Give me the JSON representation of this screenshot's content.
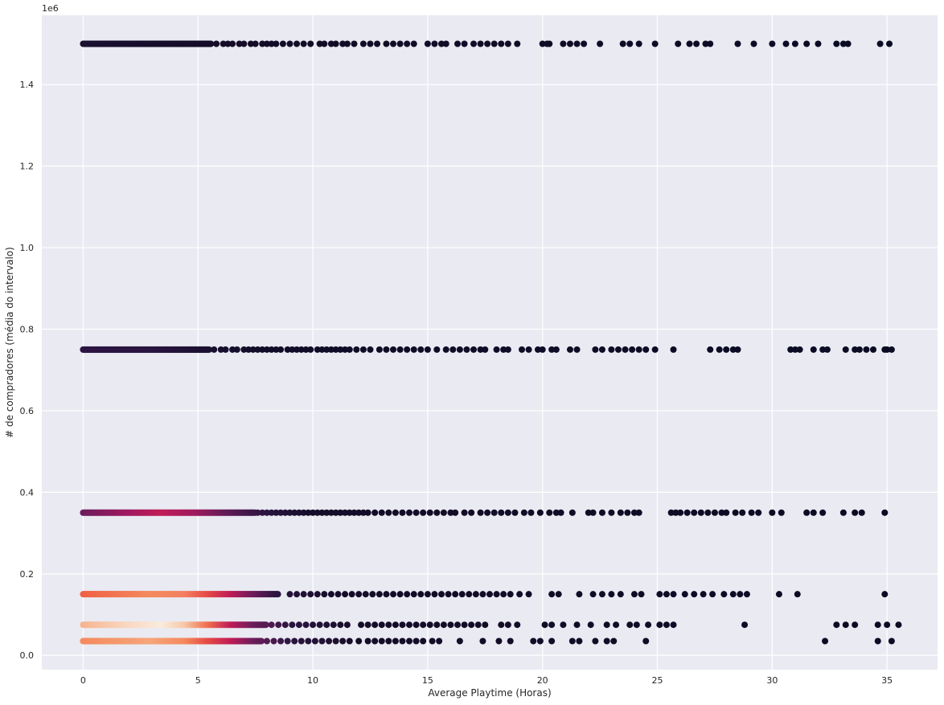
{
  "chart_data": {
    "type": "scatter",
    "title": "",
    "xlabel": "Average Playtime (Horas)",
    "ylabel": "# de compradores (média do intervalo)",
    "y_offset_label": "1e6",
    "xlim": [
      -1.8,
      37.2
    ],
    "ylim": [
      -35000,
      1570000
    ],
    "x_ticks": [
      0,
      5,
      10,
      15,
      20,
      25,
      30,
      35
    ],
    "x_tick_labels": [
      "0",
      "5",
      "10",
      "15",
      "20",
      "25",
      "30",
      "35"
    ],
    "y_ticks": [
      0,
      200000,
      400000,
      600000,
      800000,
      1000000,
      1200000,
      1400000
    ],
    "y_tick_labels": [
      "0.0",
      "0.2",
      "0.4",
      "0.6",
      "0.8",
      "1.0",
      "1.2",
      "1.4"
    ],
    "grid": true,
    "background": "#eaeaf2",
    "grid_color": "#ffffff",
    "colormap": "rocket",
    "point_color_note": "color encodes point density",
    "series": [
      {
        "y": 1500000,
        "dense_until": 5.6,
        "color_stops": [
          [
            0,
            "#1a1030"
          ],
          [
            5.6,
            "#140c28"
          ],
          [
            36,
            "#0b0b24"
          ]
        ],
        "sparse_x": [
          5.8,
          6.1,
          6.3,
          6.5,
          6.8,
          7.0,
          7.3,
          7.5,
          7.8,
          8.0,
          8.2,
          8.4,
          8.7,
          9.0,
          9.3,
          9.6,
          9.9,
          10.3,
          10.5,
          10.8,
          11.0,
          11.3,
          11.5,
          11.8,
          12.2,
          12.5,
          12.8,
          13.2,
          13.5,
          13.8,
          14.1,
          14.4,
          15.0,
          15.3,
          15.6,
          15.8,
          16.3,
          16.6,
          17.0,
          17.3,
          17.6,
          17.9,
          18.2,
          18.5,
          18.9,
          20.0,
          20.2,
          20.3,
          20.9,
          21.2,
          21.5,
          21.8,
          22.5,
          23.5,
          23.8,
          24.2,
          24.9,
          25.9,
          26.4,
          26.7,
          27.1,
          27.3,
          28.5,
          29.2,
          30.0,
          30.6,
          31.0,
          31.5,
          32.0,
          32.8,
          33.1,
          33.3,
          34.7,
          35.1
        ],
        "sparse_color": "#0b0b24"
      },
      {
        "y": 750000,
        "dense_until": 5.5,
        "color_stops": [
          [
            0,
            "#2b1443"
          ],
          [
            3,
            "#2a1440"
          ],
          [
            5.5,
            "#1a1030"
          ],
          [
            8,
            "#100c28"
          ],
          [
            36,
            "#0b0b24"
          ]
        ],
        "sparse_x": [
          5.7,
          6.0,
          6.2,
          6.5,
          6.7,
          7.0,
          7.2,
          7.4,
          7.6,
          7.8,
          8.0,
          8.2,
          8.4,
          8.6,
          8.9,
          9.1,
          9.3,
          9.5,
          9.7,
          9.9,
          10.2,
          10.4,
          10.6,
          10.8,
          11.0,
          11.2,
          11.4,
          11.6,
          11.9,
          12.2,
          12.5,
          12.9,
          13.2,
          13.5,
          13.8,
          14.1,
          14.4,
          14.7,
          15.0,
          15.4,
          15.8,
          16.1,
          16.4,
          16.7,
          17.0,
          17.3,
          17.5,
          18.0,
          18.3,
          18.5,
          19.1,
          19.4,
          19.8,
          20.0,
          20.4,
          20.6,
          21.2,
          21.5,
          22.3,
          22.6,
          23.0,
          23.3,
          23.6,
          23.9,
          24.2,
          24.5,
          24.9,
          25.7,
          27.3,
          27.7,
          28.0,
          28.3,
          28.5,
          30.8,
          31.0,
          31.2,
          31.8,
          32.2,
          32.4,
          33.2,
          33.6,
          33.8,
          34.1,
          34.4,
          34.9,
          35.0,
          35.2
        ],
        "sparse_color": "#0b0b24"
      },
      {
        "y": 350000,
        "dense_until": 7.5,
        "color_stops": [
          [
            0,
            "#6b1d5c"
          ],
          [
            2,
            "#a0185e"
          ],
          [
            3.5,
            "#c01d58"
          ],
          [
            5,
            "#9d1a5e"
          ],
          [
            6.5,
            "#5a1a55"
          ],
          [
            8,
            "#2a1440"
          ],
          [
            10,
            "#140c28"
          ],
          [
            36,
            "#0b0b24"
          ]
        ],
        "sparse_x": [
          7.6,
          7.8,
          8.0,
          8.2,
          8.4,
          8.6,
          8.8,
          9.0,
          9.2,
          9.4,
          9.6,
          9.8,
          10.0,
          10.2,
          10.4,
          10.6,
          10.8,
          11.0,
          11.2,
          11.4,
          11.6,
          11.8,
          12.0,
          12.2,
          12.4,
          12.7,
          13.0,
          13.3,
          13.6,
          13.9,
          14.2,
          14.5,
          14.8,
          15.1,
          15.4,
          15.7,
          16.0,
          16.2,
          16.6,
          16.9,
          17.3,
          17.6,
          17.9,
          18.2,
          18.5,
          18.8,
          19.2,
          19.5,
          19.9,
          20.3,
          20.6,
          20.8,
          21.3,
          22.0,
          22.2,
          22.6,
          23.0,
          23.4,
          23.7,
          24.0,
          24.2,
          25.6,
          25.8,
          26.0,
          26.3,
          26.6,
          26.9,
          27.2,
          27.5,
          27.8,
          28.0,
          28.4,
          28.7,
          29.1,
          29.4,
          30.0,
          30.4,
          31.5,
          31.8,
          32.2,
          33.1,
          33.6,
          33.9,
          34.9
        ],
        "sparse_color": "#0b0b24"
      },
      {
        "y": 150000,
        "dense_until": 8.5,
        "color_stops": [
          [
            0,
            "#f06044"
          ],
          [
            3,
            "#f48a5e"
          ],
          [
            4.5,
            "#f38060"
          ],
          [
            5.5,
            "#e64a45"
          ],
          [
            6.5,
            "#c01d58"
          ],
          [
            7.5,
            "#6b1d5c"
          ],
          [
            8.5,
            "#2a1440"
          ],
          [
            11,
            "#140c28"
          ],
          [
            36,
            "#0b0b24"
          ]
        ],
        "sparse_x": [
          9.0,
          9.3,
          9.6,
          9.9,
          10.2,
          10.5,
          10.8,
          11.1,
          11.4,
          11.7,
          12.0,
          12.3,
          12.6,
          12.9,
          13.2,
          13.5,
          13.8,
          14.1,
          14.4,
          14.7,
          15.0,
          15.3,
          15.6,
          15.9,
          16.2,
          16.5,
          16.8,
          17.1,
          17.4,
          17.7,
          18.0,
          18.3,
          18.6,
          19.0,
          19.4,
          20.4,
          20.7,
          21.6,
          22.2,
          22.6,
          23.0,
          23.4,
          24.0,
          24.3,
          25.1,
          25.4,
          25.7,
          26.2,
          26.6,
          27.0,
          27.4,
          27.9,
          28.3,
          28.6,
          28.9,
          30.3,
          31.1,
          34.9
        ],
        "sparse_color": "#0b0b24"
      },
      {
        "y": 75000,
        "dense_until": 8.0,
        "color_stops": [
          [
            0,
            "#f6b48f"
          ],
          [
            2,
            "#f9d7c1"
          ],
          [
            3.5,
            "#faebdd"
          ],
          [
            4.5,
            "#f6c8a8"
          ],
          [
            5.5,
            "#f07050"
          ],
          [
            6.5,
            "#c01d58"
          ],
          [
            7.5,
            "#6b1d5c"
          ],
          [
            9,
            "#2a1440"
          ],
          [
            12,
            "#140c28"
          ],
          [
            36,
            "#0b0b24"
          ]
        ],
        "sparse_x": [
          8.2,
          8.5,
          8.8,
          9.1,
          9.4,
          9.7,
          10.0,
          10.3,
          10.6,
          10.9,
          11.2,
          11.5,
          12.1,
          12.4,
          12.7,
          13.0,
          13.3,
          13.6,
          13.9,
          14.2,
          14.5,
          14.8,
          15.1,
          15.4,
          15.7,
          16.0,
          16.3,
          16.6,
          16.9,
          17.2,
          17.5,
          18.2,
          18.5,
          18.9,
          20.1,
          20.4,
          20.9,
          21.5,
          22.1,
          22.8,
          23.2,
          23.8,
          24.1,
          24.6,
          25.1,
          25.4,
          25.7,
          28.8,
          32.8,
          33.2,
          33.6,
          34.6,
          35.0,
          35.5
        ],
        "sparse_color": "#0b0b24"
      },
      {
        "y": 35000,
        "dense_until": 7.8,
        "color_stops": [
          [
            0,
            "#f48a5e"
          ],
          [
            3,
            "#f6a57a"
          ],
          [
            4.5,
            "#f48a5e"
          ],
          [
            5.5,
            "#e64a45"
          ],
          [
            6.5,
            "#c01d58"
          ],
          [
            7.5,
            "#6b1d5c"
          ],
          [
            9,
            "#2a1440"
          ],
          [
            12,
            "#140c28"
          ],
          [
            36,
            "#0b0b24"
          ]
        ],
        "sparse_x": [
          8.0,
          8.3,
          8.6,
          8.9,
          9.2,
          9.5,
          9.8,
          10.1,
          10.4,
          10.7,
          11.0,
          11.3,
          11.6,
          12.0,
          12.4,
          12.7,
          13.0,
          13.3,
          13.6,
          13.9,
          14.2,
          14.5,
          14.8,
          15.2,
          15.5,
          16.4,
          17.4,
          18.1,
          18.6,
          19.6,
          19.9,
          20.4,
          21.3,
          21.6,
          22.3,
          22.8,
          23.1,
          24.5,
          32.3,
          34.6,
          35.2
        ],
        "sparse_color": "#0b0b24"
      }
    ]
  }
}
